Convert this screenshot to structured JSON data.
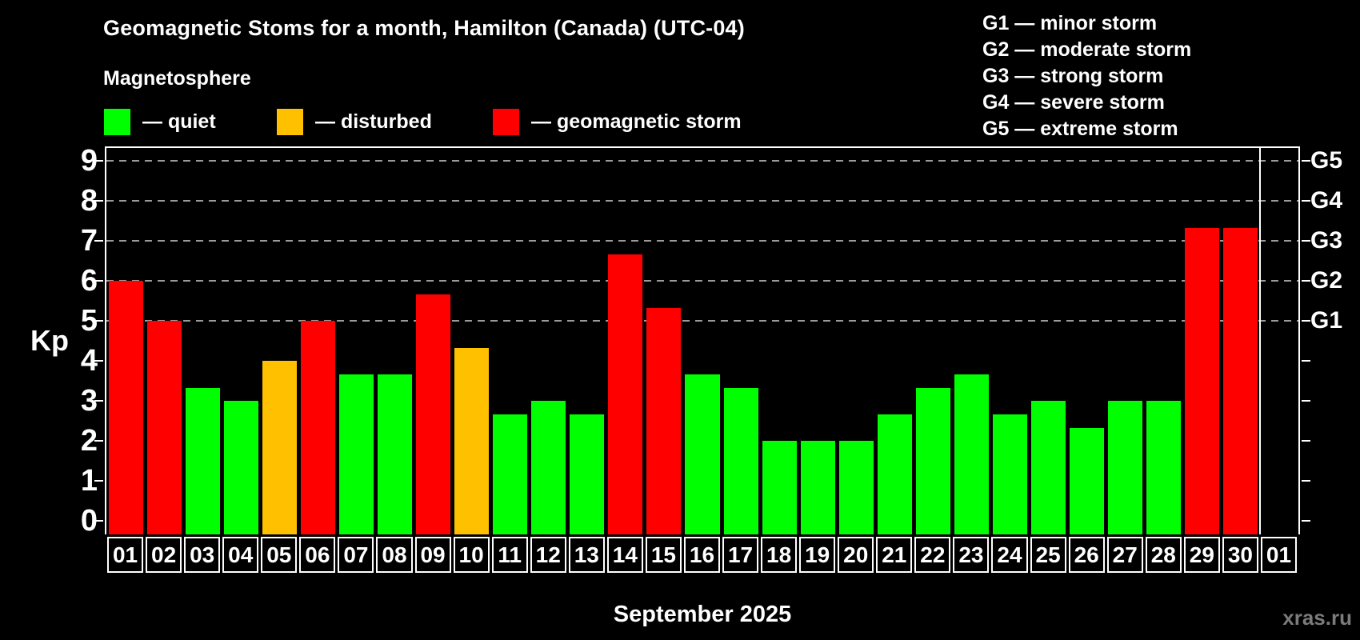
{
  "title": "Geomagnetic Stoms for a month, Hamilton (Canada) (UTC-04)",
  "subtitle": "Magnetosphere",
  "legend": {
    "items": [
      {
        "key": "quiet",
        "label": "— quiet",
        "color": "#00ff00"
      },
      {
        "key": "disturbed",
        "label": "— disturbed",
        "color": "#ffc000"
      },
      {
        "key": "storm",
        "label": "— geomagnetic storm",
        "color": "#ff0000"
      }
    ]
  },
  "g_legend": {
    "items": [
      {
        "text": "G1 — minor storm"
      },
      {
        "text": "G2 — moderate storm"
      },
      {
        "text": "G3 — strong storm"
      },
      {
        "text": "G4 — severe storm"
      },
      {
        "text": "G5 — extreme storm"
      }
    ]
  },
  "axes": {
    "y_label": "Kp",
    "x_label": "September 2025"
  },
  "watermark": "xras.ru",
  "colors": {
    "background": "#000000",
    "axis": "#ffffff",
    "grid": "#9a9a9a",
    "quiet": "#00ff00",
    "disturbed": "#ffc000",
    "storm": "#ff0000",
    "watermark": "#7b7b7b"
  },
  "chart_data": {
    "type": "bar",
    "title": "Geomagnetic Stoms for a month, Hamilton (Canada) (UTC-04)",
    "xlabel": "September 2025",
    "ylabel": "Kp",
    "ylim": [
      0,
      9.35
    ],
    "grid": "dashed horizontal at Kp 5-9 only",
    "legend_position": "top-left",
    "categories": [
      "01",
      "02",
      "03",
      "04",
      "05",
      "06",
      "07",
      "08",
      "09",
      "10",
      "11",
      "12",
      "13",
      "14",
      "15",
      "16",
      "17",
      "18",
      "19",
      "20",
      "21",
      "22",
      "23",
      "24",
      "25",
      "26",
      "27",
      "28",
      "29",
      "30",
      "01"
    ],
    "values": [
      6.0,
      5.0,
      3.33,
      3.0,
      4.0,
      5.0,
      3.67,
      3.67,
      5.67,
      4.33,
      2.67,
      3.0,
      2.67,
      6.67,
      5.33,
      3.67,
      3.33,
      2.0,
      2.0,
      2.0,
      2.67,
      3.33,
      3.67,
      2.67,
      3.0,
      2.33,
      3.0,
      3.0,
      7.33,
      7.33,
      null
    ],
    "statuses": [
      "storm",
      "storm",
      "quiet",
      "quiet",
      "disturbed",
      "storm",
      "quiet",
      "quiet",
      "storm",
      "disturbed",
      "quiet",
      "quiet",
      "quiet",
      "storm",
      "storm",
      "quiet",
      "quiet",
      "quiet",
      "quiet",
      "quiet",
      "quiet",
      "quiet",
      "quiet",
      "quiet",
      "quiet",
      "quiet",
      "quiet",
      "quiet",
      "storm",
      "storm",
      null
    ],
    "y_ticks": [
      0,
      1,
      2,
      3,
      4,
      5,
      6,
      7,
      8,
      9
    ],
    "grid_kp": [
      5,
      6,
      7,
      8,
      9
    ],
    "right_axis": [
      {
        "text": "G5",
        "kp": 9
      },
      {
        "text": "G4",
        "kp": 8
      },
      {
        "text": "G3",
        "kp": 7
      },
      {
        "text": "G2",
        "kp": 6
      },
      {
        "text": "G1",
        "kp": 5
      }
    ],
    "separator_before_index": 30
  }
}
